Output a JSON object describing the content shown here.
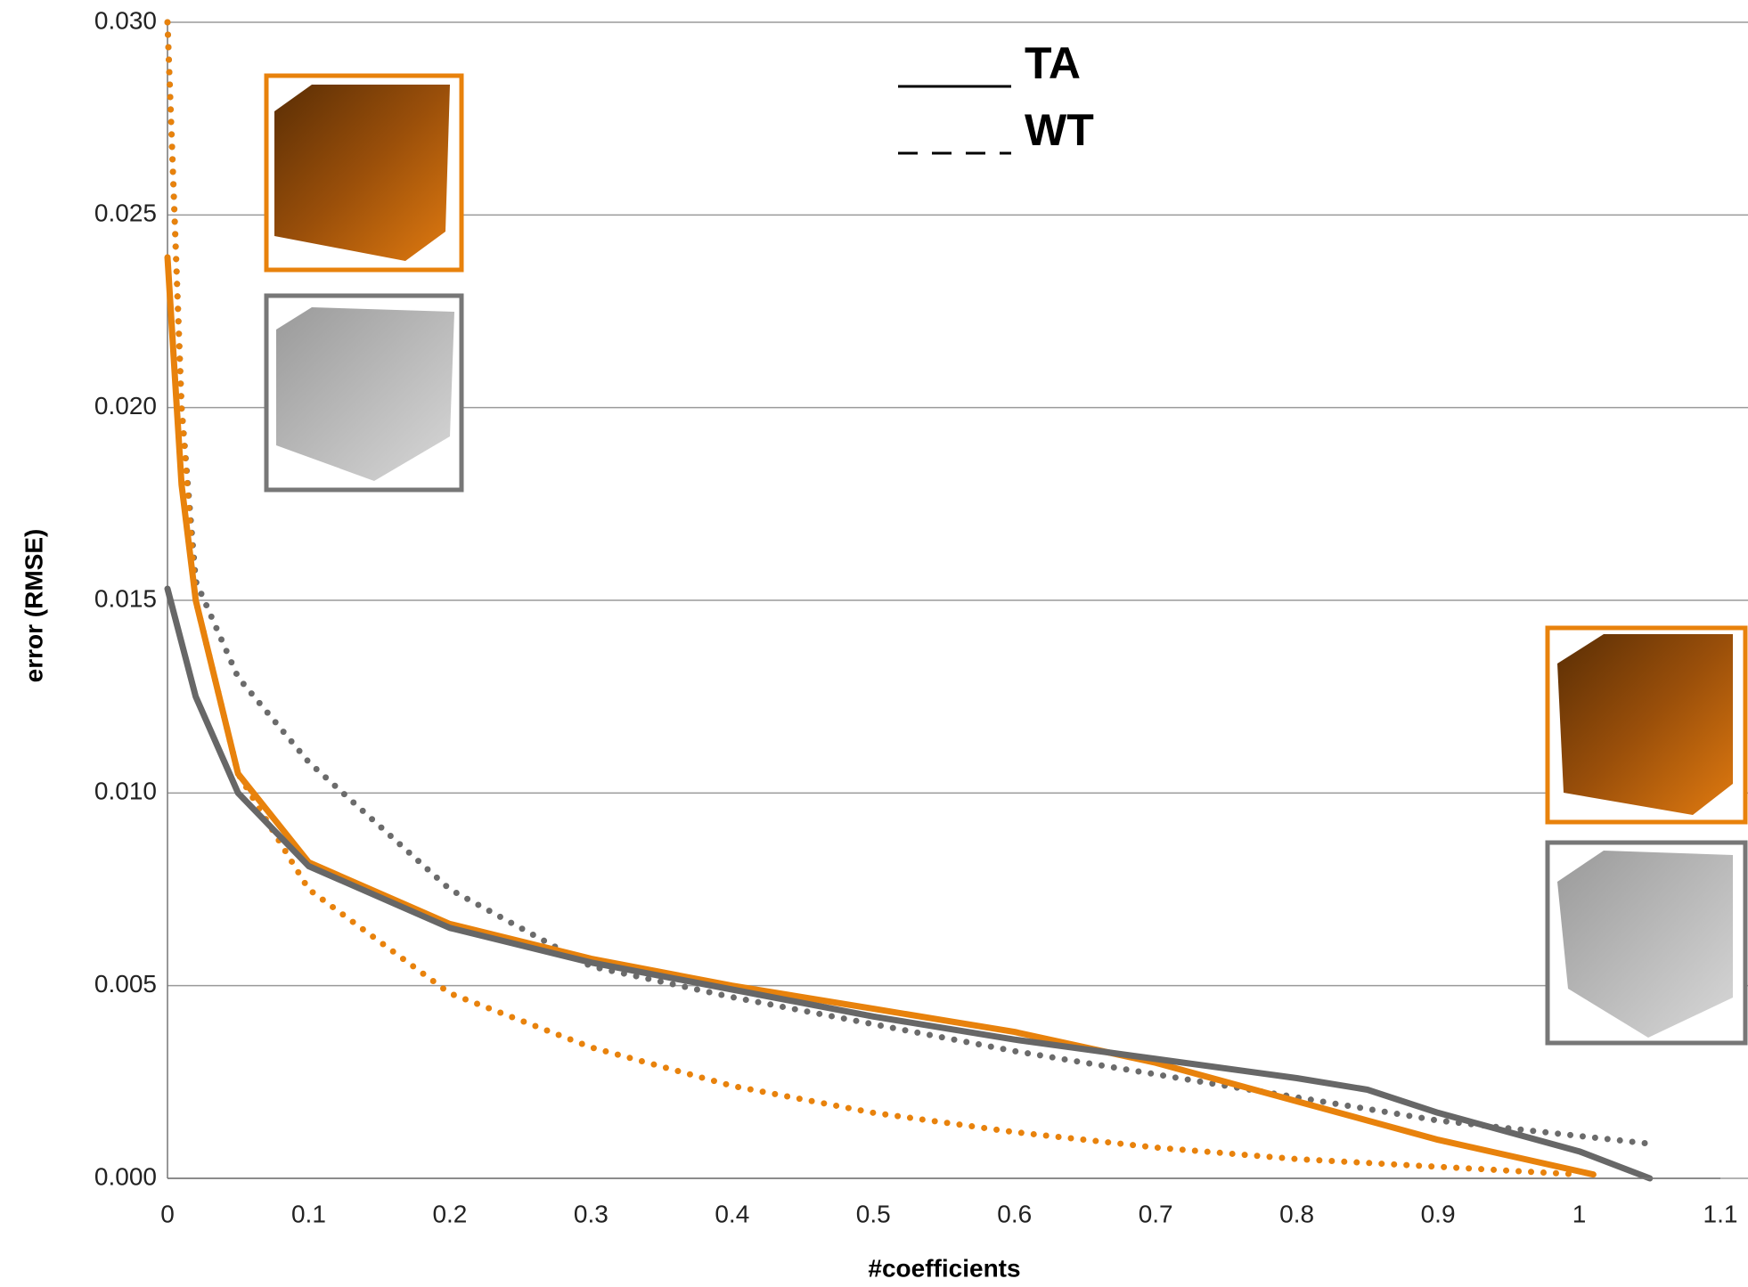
{
  "chart_data": {
    "type": "line",
    "x_label": "#coefficients",
    "y_label": "error (RMSE)",
    "xlim": [
      0,
      1.1
    ],
    "ylim": [
      0,
      0.03
    ],
    "xticks": [
      0,
      0.1,
      0.2,
      0.3,
      0.4,
      0.5,
      0.6,
      0.7,
      0.8,
      0.9,
      1,
      1.1
    ],
    "yticks": [
      {
        "value": 0,
        "label": "0.000"
      },
      {
        "value": 0.005,
        "label": "0.005"
      },
      {
        "value": 0.01,
        "label": "0.010"
      },
      {
        "value": 0.015,
        "label": "0.015"
      },
      {
        "value": 0.02,
        "label": "0.020"
      },
      {
        "value": 0.025,
        "label": "0.025"
      },
      {
        "value": 0.03,
        "label": "0.030"
      }
    ],
    "grid": true,
    "legend": [
      {
        "label": "TA",
        "style": "solid"
      },
      {
        "label": "WT",
        "style": "dotted"
      }
    ],
    "series": [
      {
        "color": "#6b6b6b",
        "style": "dotted",
        "x": [
          0,
          0.01,
          0.02,
          0.05,
          0.1,
          0.2,
          0.3,
          0.4,
          0.5,
          0.6,
          0.7,
          0.8,
          0.9,
          1.05
        ],
        "values": [
          0.03,
          0.02,
          0.0155,
          0.013,
          0.0108,
          0.0075,
          0.0055,
          0.0047,
          0.004,
          0.0033,
          0.0027,
          0.0021,
          0.0015,
          0.0009
        ]
      },
      {
        "color": "#e8820c",
        "style": "dotted",
        "x": [
          0,
          0.01,
          0.02,
          0.05,
          0.1,
          0.2,
          0.3,
          0.4,
          0.5,
          0.6,
          0.7,
          0.8,
          0.9,
          1.0
        ],
        "values": [
          0.03,
          0.02,
          0.015,
          0.0105,
          0.0075,
          0.0048,
          0.0034,
          0.0024,
          0.0017,
          0.0012,
          0.0008,
          0.0005,
          0.0003,
          0.0001
        ]
      },
      {
        "color": "#e8820c",
        "style": "solid",
        "x": [
          0,
          0.01,
          0.02,
          0.05,
          0.1,
          0.2,
          0.3,
          0.4,
          0.5,
          0.6,
          0.7,
          0.8,
          0.9,
          1.01
        ],
        "values": [
          0.0239,
          0.018,
          0.015,
          0.0105,
          0.0082,
          0.0066,
          0.0057,
          0.005,
          0.0044,
          0.0038,
          0.003,
          0.002,
          0.001,
          0.0001
        ]
      },
      {
        "color": "#676767",
        "style": "solid",
        "x": [
          0,
          0.02,
          0.05,
          0.1,
          0.2,
          0.3,
          0.4,
          0.5,
          0.6,
          0.7,
          0.8,
          0.85,
          0.9,
          1.0,
          1.05
        ],
        "values": [
          0.0153,
          0.0125,
          0.01,
          0.0081,
          0.0065,
          0.0056,
          0.0049,
          0.0042,
          0.0036,
          0.0031,
          0.0026,
          0.0023,
          0.0017,
          0.0007,
          0
        ]
      }
    ]
  }
}
